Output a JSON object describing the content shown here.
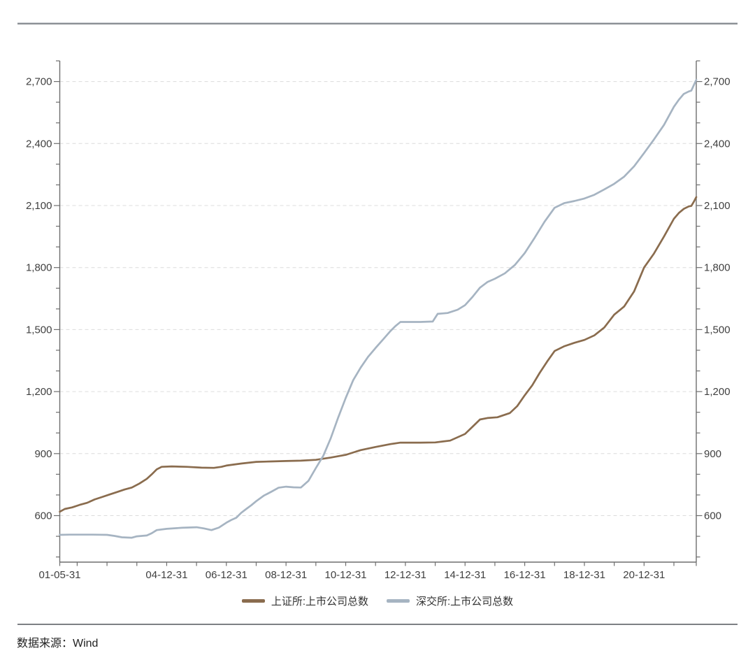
{
  "footer": {
    "source_label": "数据来源：Wind"
  },
  "chart_data": {
    "type": "line",
    "title": "",
    "xlabel": "",
    "ylabel": "",
    "grid": "horizontal-dashed",
    "legend_position": "bottom-center",
    "x_axis": {
      "start": "2001-05",
      "end": "2022-09",
      "months_total": 256,
      "year_tick": "every Dec-31",
      "labels": [
        {
          "text": "01-05-31",
          "date": "2001-05"
        },
        {
          "text": "04-12-31",
          "date": "2004-12"
        },
        {
          "text": "06-12-31",
          "date": "2006-12"
        },
        {
          "text": "08-12-31",
          "date": "2008-12"
        },
        {
          "text": "10-12-31",
          "date": "2010-12"
        },
        {
          "text": "12-12-31",
          "date": "2012-12"
        },
        {
          "text": "14-12-31",
          "date": "2014-12"
        },
        {
          "text": "16-12-31",
          "date": "2016-12"
        },
        {
          "text": "18-12-31",
          "date": "2018-12"
        },
        {
          "text": "20-12-31",
          "date": "2020-12"
        }
      ]
    },
    "y_axis": {
      "min": 375,
      "max": 2796,
      "major_ticks": [
        600,
        900,
        1200,
        1500,
        1800,
        2100,
        2400,
        2700
      ],
      "tick_labels": [
        "600",
        "900",
        "1,200",
        "1,500",
        "1,800",
        "2,100",
        "2,400",
        "2,700"
      ],
      "minor_tick_step": 100,
      "mirrored_right_axis": true
    },
    "series": [
      {
        "name": "上证所:上市公司总数",
        "color": "#8a6c4e",
        "points": [
          [
            "2001-05",
            619
          ],
          [
            "2001-07",
            632
          ],
          [
            "2001-10",
            640
          ],
          [
            "2002-01",
            652
          ],
          [
            "2002-04",
            662
          ],
          [
            "2002-07",
            678
          ],
          [
            "2002-10",
            690
          ],
          [
            "2003-01",
            702
          ],
          [
            "2003-04",
            714
          ],
          [
            "2003-07",
            726
          ],
          [
            "2003-10",
            736
          ],
          [
            "2004-01",
            755
          ],
          [
            "2004-04",
            778
          ],
          [
            "2004-06",
            800
          ],
          [
            "2004-08",
            824
          ],
          [
            "2004-10",
            836
          ],
          [
            "2005-02",
            838
          ],
          [
            "2005-08",
            836
          ],
          [
            "2006-02",
            832
          ],
          [
            "2006-07",
            831
          ],
          [
            "2006-10",
            836
          ],
          [
            "2006-12",
            842
          ],
          [
            "2007-06",
            852
          ],
          [
            "2007-12",
            860
          ],
          [
            "2008-06",
            862
          ],
          [
            "2008-12",
            864
          ],
          [
            "2009-06",
            866
          ],
          [
            "2009-12",
            870
          ],
          [
            "2010-06",
            881
          ],
          [
            "2010-12",
            894
          ],
          [
            "2011-06",
            917
          ],
          [
            "2011-12",
            932
          ],
          [
            "2012-06",
            946
          ],
          [
            "2012-10",
            953
          ],
          [
            "2013-06",
            953
          ],
          [
            "2013-12",
            954
          ],
          [
            "2014-06",
            963
          ],
          [
            "2014-12",
            995
          ],
          [
            "2015-03",
            1030
          ],
          [
            "2015-06",
            1065
          ],
          [
            "2015-09",
            1072
          ],
          [
            "2016-01",
            1076
          ],
          [
            "2016-06",
            1096
          ],
          [
            "2016-09",
            1130
          ],
          [
            "2016-12",
            1182
          ],
          [
            "2017-03",
            1230
          ],
          [
            "2017-06",
            1290
          ],
          [
            "2017-09",
            1345
          ],
          [
            "2017-12",
            1396
          ],
          [
            "2018-04",
            1420
          ],
          [
            "2018-08",
            1436
          ],
          [
            "2018-12",
            1450
          ],
          [
            "2019-04",
            1472
          ],
          [
            "2019-08",
            1510
          ],
          [
            "2019-12",
            1572
          ],
          [
            "2020-04",
            1612
          ],
          [
            "2020-08",
            1685
          ],
          [
            "2020-12",
            1800
          ],
          [
            "2021-04",
            1868
          ],
          [
            "2021-08",
            1950
          ],
          [
            "2021-12",
            2036
          ],
          [
            "2022-02",
            2064
          ],
          [
            "2022-04",
            2084
          ],
          [
            "2022-06",
            2096
          ],
          [
            "2022-07",
            2098
          ],
          [
            "2022-08",
            2118
          ],
          [
            "2022-09",
            2141
          ]
        ]
      },
      {
        "name": "深交所:上市公司总数",
        "color": "#a6b4c2",
        "points": [
          [
            "2001-05",
            507
          ],
          [
            "2001-09",
            508
          ],
          [
            "2002-01",
            508
          ],
          [
            "2002-06",
            508
          ],
          [
            "2002-12",
            507
          ],
          [
            "2003-03",
            502
          ],
          [
            "2003-06",
            495
          ],
          [
            "2003-10",
            493
          ],
          [
            "2003-12",
            500
          ],
          [
            "2004-04",
            504
          ],
          [
            "2004-06",
            515
          ],
          [
            "2004-08",
            530
          ],
          [
            "2004-12",
            536
          ],
          [
            "2005-06",
            541
          ],
          [
            "2005-12",
            544
          ],
          [
            "2006-03",
            538
          ],
          [
            "2006-06",
            530
          ],
          [
            "2006-09",
            542
          ],
          [
            "2006-12",
            566
          ],
          [
            "2007-02",
            579
          ],
          [
            "2007-04",
            590
          ],
          [
            "2007-06",
            614
          ],
          [
            "2007-08",
            632
          ],
          [
            "2007-10",
            650
          ],
          [
            "2007-12",
            670
          ],
          [
            "2008-03",
            696
          ],
          [
            "2008-06",
            715
          ],
          [
            "2008-09",
            735
          ],
          [
            "2008-12",
            740
          ],
          [
            "2009-03",
            737
          ],
          [
            "2009-06",
            736
          ],
          [
            "2009-09",
            768
          ],
          [
            "2009-12",
            830
          ],
          [
            "2010-03",
            890
          ],
          [
            "2010-06",
            975
          ],
          [
            "2010-09",
            1075
          ],
          [
            "2010-12",
            1169
          ],
          [
            "2011-03",
            1255
          ],
          [
            "2011-06",
            1316
          ],
          [
            "2011-09",
            1368
          ],
          [
            "2011-12",
            1411
          ],
          [
            "2012-03",
            1452
          ],
          [
            "2012-06",
            1493
          ],
          [
            "2012-08",
            1517
          ],
          [
            "2012-10",
            1537
          ],
          [
            "2013-06",
            1537
          ],
          [
            "2013-11",
            1539
          ],
          [
            "2014-01",
            1576
          ],
          [
            "2014-05",
            1580
          ],
          [
            "2014-09",
            1596
          ],
          [
            "2014-12",
            1618
          ],
          [
            "2015-03",
            1658
          ],
          [
            "2015-06",
            1703
          ],
          [
            "2015-09",
            1730
          ],
          [
            "2015-12",
            1746
          ],
          [
            "2016-04",
            1772
          ],
          [
            "2016-08",
            1812
          ],
          [
            "2016-12",
            1870
          ],
          [
            "2017-04",
            1944
          ],
          [
            "2017-08",
            2022
          ],
          [
            "2017-12",
            2089
          ],
          [
            "2018-04",
            2112
          ],
          [
            "2018-08",
            2122
          ],
          [
            "2018-12",
            2134
          ],
          [
            "2019-04",
            2152
          ],
          [
            "2019-08",
            2178
          ],
          [
            "2019-12",
            2205
          ],
          [
            "2020-04",
            2240
          ],
          [
            "2020-08",
            2290
          ],
          [
            "2020-12",
            2354
          ],
          [
            "2021-04",
            2420
          ],
          [
            "2021-08",
            2490
          ],
          [
            "2021-12",
            2578
          ],
          [
            "2022-02",
            2612
          ],
          [
            "2022-04",
            2640
          ],
          [
            "2022-06",
            2652
          ],
          [
            "2022-07",
            2656
          ],
          [
            "2022-09",
            2708
          ]
        ]
      }
    ]
  }
}
